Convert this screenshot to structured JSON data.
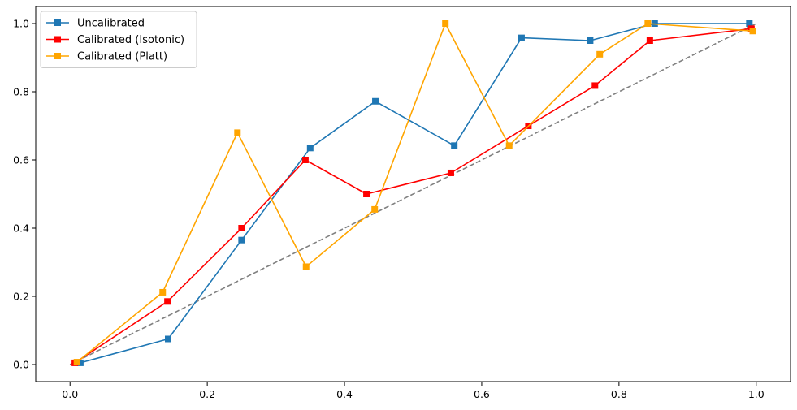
{
  "chart_data": {
    "type": "line",
    "title": "",
    "xlabel": "",
    "ylabel": "",
    "xlim": [
      -0.05,
      1.05
    ],
    "ylim": [
      -0.05,
      1.05
    ],
    "xticks": [
      0.0,
      0.2,
      0.4,
      0.6,
      0.8,
      1.0
    ],
    "yticks": [
      0.0,
      0.2,
      0.4,
      0.6,
      0.8,
      1.0
    ],
    "xtick_labels": [
      "0.0",
      "0.2",
      "0.4",
      "0.6",
      "0.8",
      "1.0"
    ],
    "ytick_labels": [
      "0.0",
      "0.2",
      "0.4",
      "0.6",
      "0.8",
      "1.0"
    ],
    "grid": false,
    "legend_position": "upper left",
    "reference_line": {
      "x": [
        0.0,
        1.0
      ],
      "y": [
        0.0,
        1.0
      ],
      "color": "#808080",
      "style": "dashed"
    },
    "series": [
      {
        "name": "Uncalibrated",
        "color": "#1f77b4",
        "marker": "square",
        "x": [
          0.015,
          0.143,
          0.25,
          0.35,
          0.445,
          0.56,
          0.658,
          0.758,
          0.852,
          0.99
        ],
        "y": [
          0.005,
          0.075,
          0.365,
          0.635,
          0.772,
          0.642,
          0.958,
          0.95,
          1.0,
          1.0
        ]
      },
      {
        "name": "Calibrated (Isotonic)",
        "color": "#ff0000",
        "marker": "square",
        "x": [
          0.007,
          0.142,
          0.25,
          0.343,
          0.432,
          0.555,
          0.668,
          0.765,
          0.845,
          0.993
        ],
        "y": [
          0.005,
          0.185,
          0.4,
          0.6,
          0.5,
          0.562,
          0.7,
          0.818,
          0.95,
          0.985
        ]
      },
      {
        "name": "Calibrated (Platt)",
        "color": "#ffa500",
        "marker": "square",
        "x": [
          0.01,
          0.135,
          0.244,
          0.344,
          0.444,
          0.547,
          0.64,
          0.772,
          0.842,
          0.995
        ],
        "y": [
          0.007,
          0.212,
          0.68,
          0.287,
          0.455,
          1.0,
          0.642,
          0.91,
          1.0,
          0.978
        ]
      }
    ]
  }
}
